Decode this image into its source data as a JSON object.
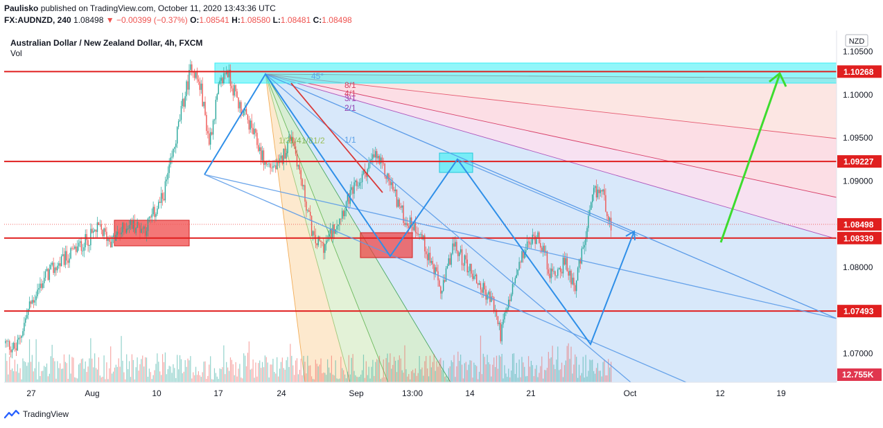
{
  "header": {
    "author": "Paulisko",
    "published_text": "published on TradingView.com, October 11, 2020 13:43:36 UTC",
    "symbol": "FX:AUDNZD, 240",
    "last": "1.08498",
    "change": "▼ −0.00399 (−0.37%)",
    "o_label": "O:",
    "o": "1.08541",
    "h_label": "H:",
    "h": "1.08580",
    "l_label": "L:",
    "l": "1.08481",
    "c_label": "C:",
    "c": "1.08498"
  },
  "legend": {
    "title": "Australian Dollar / New Zealand Dollar, 4h, FXCM",
    "vol": "Vol"
  },
  "currency_badge": "NZD",
  "footer": {
    "brand": "TradingView"
  },
  "colors": {
    "up": "#26a69a",
    "down": "#ef5350",
    "level_line": "#e01f1f",
    "pattern": "#2f8fe8",
    "arrow": "#3ddc2f",
    "zone_cyan": "#38eef5",
    "zone_red": "#ef3d3d"
  },
  "chart_data": {
    "type": "candlestick",
    "symbol": "AUDNZD",
    "timeframe": "4h",
    "ylim": [
      1.067,
      1.106
    ],
    "y_ticks": [
      1.105,
      1.1,
      1.095,
      1.09,
      1.08,
      1.07
    ],
    "y_tick_labels": [
      "1.10500",
      "1.10000",
      "1.09500",
      "1.09000",
      "1.08000",
      "1.07000"
    ],
    "x_tick_labels": [
      "27",
      "Aug",
      "10",
      "17",
      "24",
      "Sep",
      "13:00",
      "14",
      "21",
      "Oct",
      "12",
      "19"
    ],
    "horizontal_levels": [
      1.10268,
      1.09227,
      1.08339,
      1.07493
    ],
    "price_labels": [
      {
        "text": "1.10268",
        "value": 1.10268,
        "role": "level"
      },
      {
        "text": "1.09227",
        "value": 1.09227,
        "role": "level"
      },
      {
        "text": "1.08498",
        "value": 1.08498,
        "role": "last"
      },
      {
        "text": "1.08339",
        "value": 1.08339,
        "role": "level"
      },
      {
        "text": "1.07493",
        "value": 1.07493,
        "role": "level"
      }
    ],
    "volume_label": "12.755K",
    "fan_labels": [
      "45°",
      "8/1",
      "4/1",
      "3/1",
      "2/1",
      "1/1",
      "1/3",
      "1/4",
      "1/8",
      "1/2"
    ],
    "price_path": [
      {
        "bar": 0,
        "price": 1.0712
      },
      {
        "bar": 8,
        "price": 1.0705
      },
      {
        "bar": 18,
        "price": 1.0755
      },
      {
        "bar": 30,
        "price": 1.079
      },
      {
        "bar": 45,
        "price": 1.081
      },
      {
        "bar": 60,
        "price": 1.083
      },
      {
        "bar": 70,
        "price": 1.0845
      },
      {
        "bar": 80,
        "price": 1.083
      },
      {
        "bar": 92,
        "price": 1.085
      },
      {
        "bar": 105,
        "price": 1.0845
      },
      {
        "bar": 118,
        "price": 1.088
      },
      {
        "bar": 125,
        "price": 1.0925
      },
      {
        "bar": 132,
        "price": 1.098
      },
      {
        "bar": 140,
        "price": 1.1035
      },
      {
        "bar": 147,
        "price": 1.1005
      },
      {
        "bar": 153,
        "price": 1.0945
      },
      {
        "bar": 160,
        "price": 1.1005
      },
      {
        "bar": 166,
        "price": 1.103
      },
      {
        "bar": 175,
        "price": 1.099
      },
      {
        "bar": 185,
        "price": 1.096
      },
      {
        "bar": 195,
        "price": 1.092
      },
      {
        "bar": 205,
        "price": 1.0915
      },
      {
        "bar": 215,
        "price": 1.0955
      },
      {
        "bar": 225,
        "price": 1.088
      },
      {
        "bar": 232,
        "price": 1.083
      },
      {
        "bar": 240,
        "price": 1.0825
      },
      {
        "bar": 248,
        "price": 1.085
      },
      {
        "bar": 258,
        "price": 1.088
      },
      {
        "bar": 268,
        "price": 1.0905
      },
      {
        "bar": 278,
        "price": 1.093
      },
      {
        "bar": 290,
        "price": 1.0895
      },
      {
        "bar": 300,
        "price": 1.0855
      },
      {
        "bar": 310,
        "price": 1.0845
      },
      {
        "bar": 320,
        "price": 1.0805
      },
      {
        "bar": 328,
        "price": 1.077
      },
      {
        "bar": 336,
        "price": 1.0825
      },
      {
        "bar": 346,
        "price": 1.0805
      },
      {
        "bar": 356,
        "price": 1.078
      },
      {
        "bar": 366,
        "price": 1.076
      },
      {
        "bar": 372,
        "price": 1.0723
      },
      {
        "bar": 380,
        "price": 1.077
      },
      {
        "bar": 390,
        "price": 1.082
      },
      {
        "bar": 400,
        "price": 1.084
      },
      {
        "bar": 410,
        "price": 1.079
      },
      {
        "bar": 420,
        "price": 1.0805
      },
      {
        "bar": 428,
        "price": 1.078
      },
      {
        "bar": 436,
        "price": 1.0835
      },
      {
        "bar": 442,
        "price": 1.0885
      },
      {
        "bar": 448,
        "price": 1.089
      },
      {
        "bar": 455,
        "price": 1.085
      }
    ]
  }
}
